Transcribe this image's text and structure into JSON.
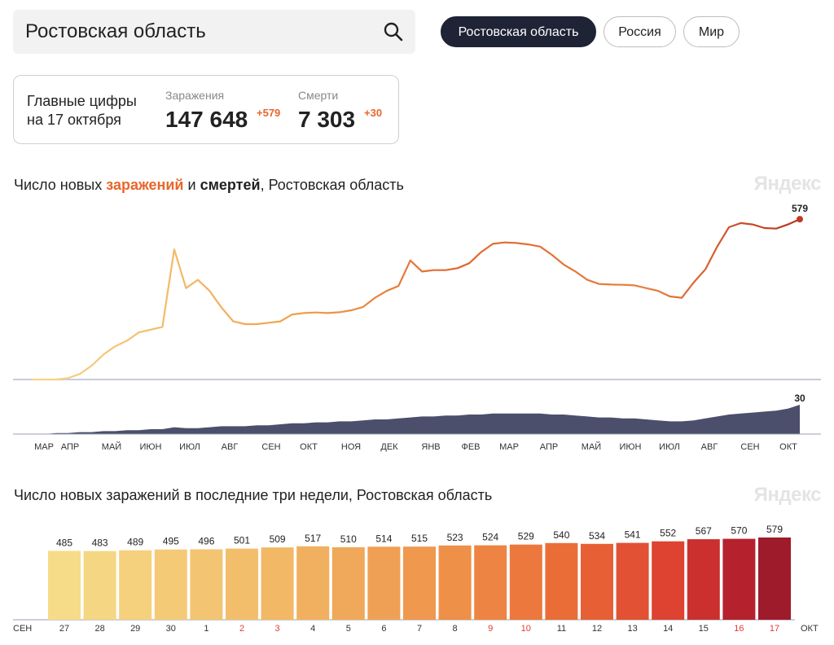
{
  "search": {
    "value": "Ростовская область"
  },
  "regions": [
    {
      "label": "Ростовская область",
      "active": true
    },
    {
      "label": "Россия",
      "active": false
    },
    {
      "label": "Мир",
      "active": false
    }
  ],
  "summary": {
    "title_line1": "Главные цифры",
    "title_line2": "на 17 октября",
    "infections_label": "Заражения",
    "infections_value": "147 648",
    "infections_delta": "+579",
    "deaths_label": "Смерти",
    "deaths_value": "7 303",
    "deaths_delta": "+30"
  },
  "chart1": {
    "title_prefix": "Число новых ",
    "title_infections": "заражений",
    "title_and": " и ",
    "title_deaths": "смертей",
    "title_suffix": ", Ростовская область",
    "watermark": "Яндекс"
  },
  "chart2": {
    "title": "Число новых заражений в последние три недели, Ростовская область",
    "watermark": "Яндекс"
  },
  "chart_data": [
    {
      "type": "area",
      "title": "Число новых заражений и смертей, Ростовская область",
      "x_tick_labels": [
        "МАР",
        "АПР",
        "МАЙ",
        "ИЮН",
        "ИЮЛ",
        "АВГ",
        "СЕН",
        "ОКТ",
        "НОЯ",
        "ДЕК",
        "ЯНВ",
        "ФЕВ",
        "МАР",
        "АПР",
        "МАЙ",
        "ИЮН",
        "ИЮЛ",
        "АВГ",
        "СЕН",
        "ОКТ"
      ],
      "series": [
        {
          "role": "infections",
          "last_value_label": "579",
          "values": [
            0,
            0,
            0,
            5,
            20,
            50,
            90,
            120,
            140,
            170,
            180,
            190,
            470,
            330,
            360,
            320,
            260,
            210,
            200,
            200,
            205,
            210,
            235,
            240,
            242,
            240,
            243,
            250,
            262,
            295,
            320,
            338,
            430,
            390,
            395,
            395,
            402,
            420,
            460,
            490,
            495,
            493,
            488,
            480,
            450,
            415,
            390,
            360,
            345,
            343,
            342,
            340,
            330,
            320,
            300,
            295,
            350,
            398,
            480,
            550,
            565,
            560,
            547,
            545,
            560,
            579
          ]
        },
        {
          "role": "deaths",
          "last_value_label": "30",
          "values": [
            0,
            0,
            1,
            1,
            2,
            2,
            3,
            3,
            4,
            4,
            5,
            5,
            7,
            6,
            6,
            7,
            8,
            8,
            8,
            9,
            9,
            10,
            11,
            11,
            12,
            12,
            13,
            13,
            14,
            15,
            15,
            16,
            17,
            18,
            18,
            19,
            19,
            20,
            20,
            21,
            21,
            21,
            21,
            21,
            20,
            20,
            19,
            18,
            17,
            17,
            16,
            16,
            15,
            14,
            13,
            13,
            14,
            16,
            18,
            20,
            21,
            22,
            23,
            24,
            26,
            30
          ]
        }
      ]
    },
    {
      "type": "bar",
      "title": "Число новых заражений в последние три недели, Ростовская область",
      "categories": [
        "27",
        "28",
        "29",
        "30",
        "1",
        "2",
        "3",
        "4",
        "5",
        "6",
        "7",
        "8",
        "9",
        "10",
        "11",
        "12",
        "13",
        "14",
        "15",
        "16",
        "17"
      ],
      "values": [
        485,
        483,
        489,
        495,
        496,
        501,
        509,
        517,
        510,
        514,
        515,
        523,
        524,
        529,
        540,
        534,
        541,
        552,
        567,
        570,
        579
      ],
      "weekend_days": [
        "2",
        "3",
        "9",
        "10",
        "16",
        "17"
      ],
      "month_start_label": "СЕН",
      "month_end_label": "ОКТ"
    }
  ],
  "colors": {
    "low": "#f6dc88",
    "mid": "#f0a04b",
    "high": "#e8662a",
    "peak": "#9e1b2c",
    "deaths": "#4b4f6b",
    "weekend": "#e53935"
  }
}
